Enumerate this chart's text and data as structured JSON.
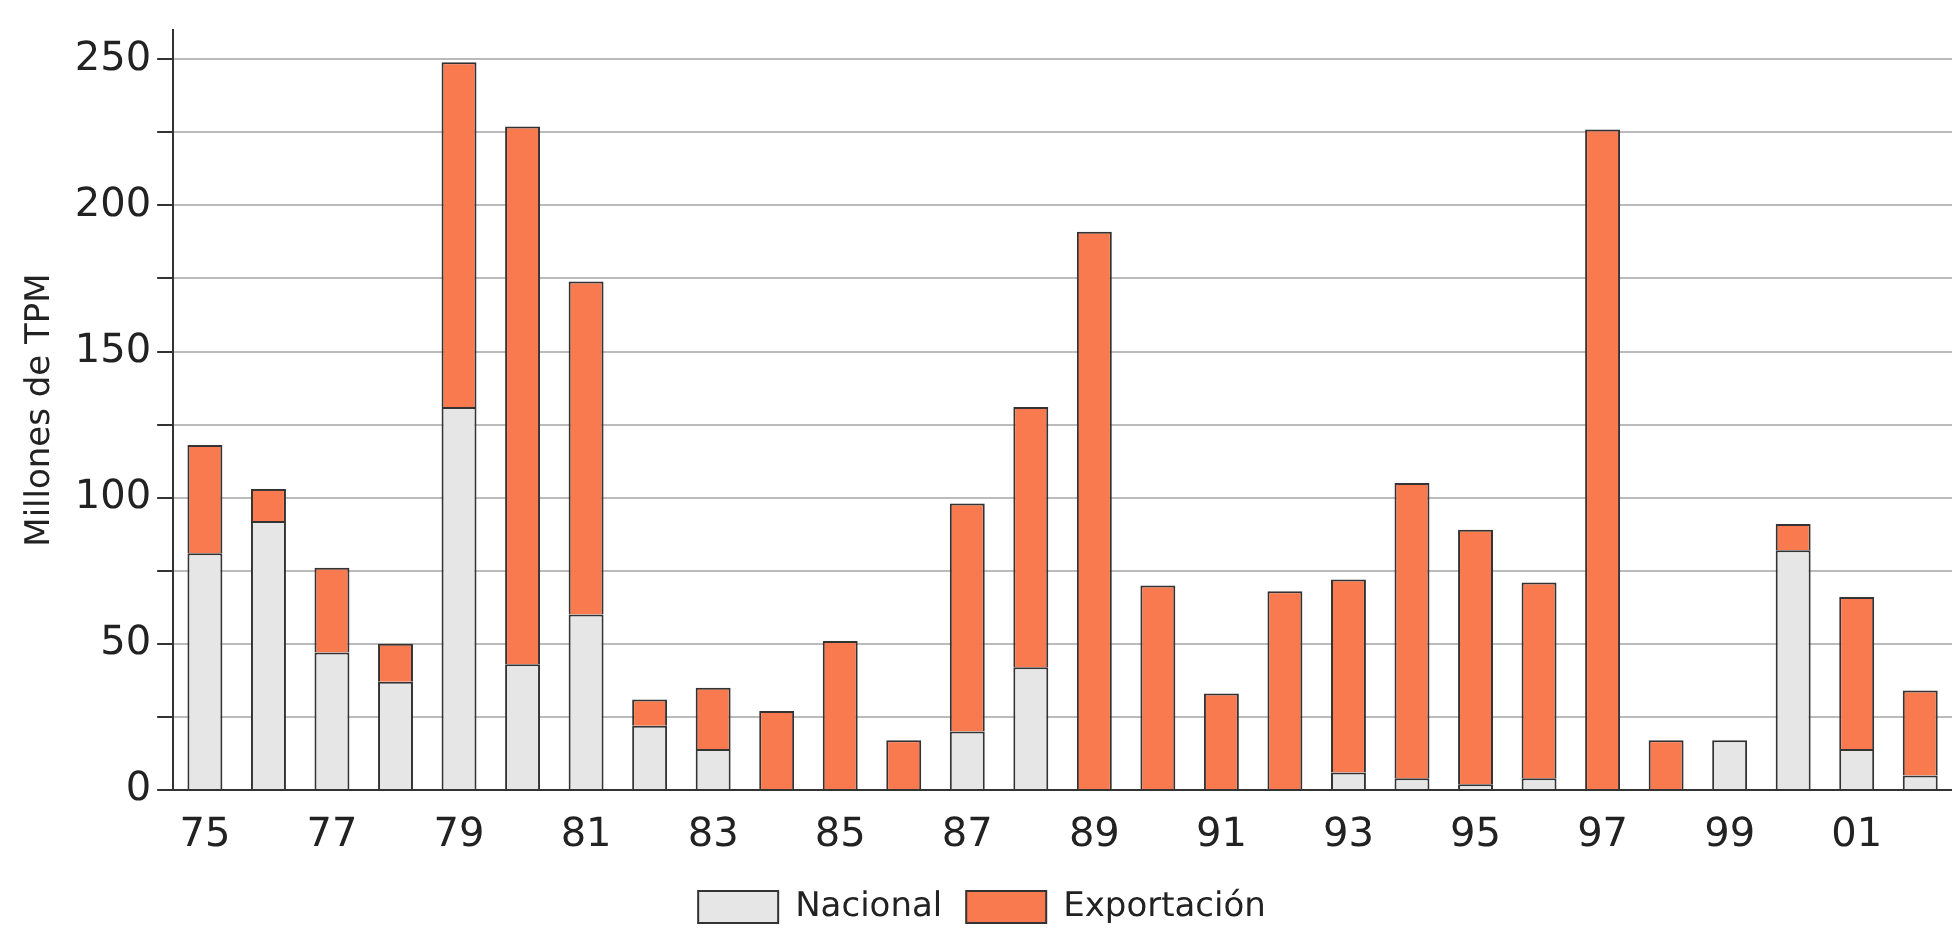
{
  "chart_data": {
    "type": "bar",
    "ylabel": "Millones de TPM",
    "stacked": true,
    "grid": "y",
    "legend": "bottom",
    "categories": [
      "75",
      null,
      "77",
      null,
      "79",
      null,
      "81",
      null,
      "83",
      null,
      "85",
      null,
      "87",
      null,
      "89",
      null,
      "91",
      null,
      "93",
      null,
      "95",
      null,
      "97",
      null,
      "99",
      null,
      "01",
      null
    ],
    "series": [
      {
        "name": "Nacional",
        "color": "#e6e6e6",
        "values": [
          81,
          92,
          47,
          37,
          131,
          43,
          60,
          22,
          14,
          0,
          0,
          0,
          20,
          42,
          0,
          0,
          0,
          0,
          6,
          4,
          2,
          4,
          0,
          0,
          17,
          82,
          14,
          5
        ]
      },
      {
        "name": "Exportación",
        "color": "#fa7a50",
        "values": [
          37,
          11,
          29,
          13,
          118,
          184,
          114,
          9,
          21,
          27,
          51,
          17,
          78,
          89,
          191,
          70,
          33,
          68,
          66,
          101,
          87,
          67,
          226,
          17,
          0,
          9,
          52,
          29
        ]
      }
    ],
    "ylim": [
      0,
      260
    ],
    "yticks": [
      0,
      {
        "value": 25,
        "label": null
      },
      50,
      {
        "value": 75,
        "label": null
      },
      100,
      {
        "value": 125,
        "label": null
      },
      150,
      {
        "value": 175,
        "label": null
      },
      200,
      {
        "value": 225,
        "label": null
      },
      250
    ]
  }
}
